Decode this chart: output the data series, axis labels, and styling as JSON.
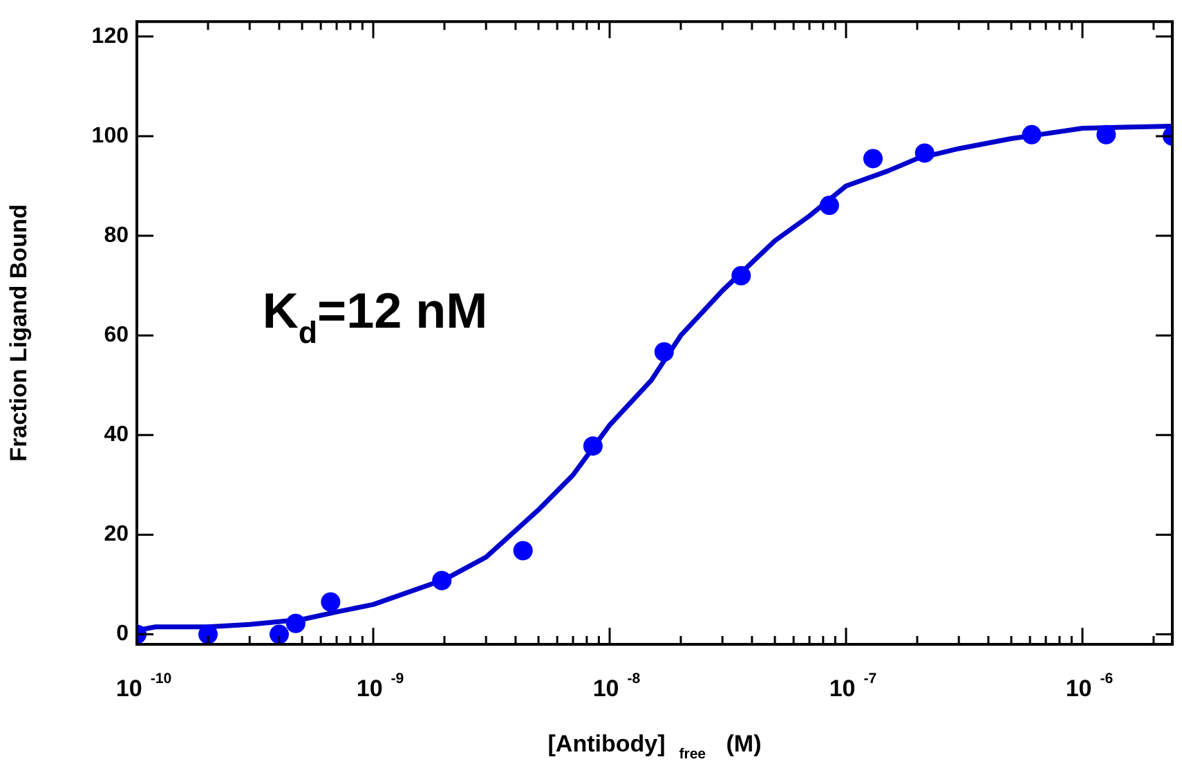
{
  "chart_data": {
    "type": "scatter",
    "xlabel": "[Antibody]$_{free}$ (M)",
    "ylabel": "Fraction Ligand Bound",
    "annotations": [
      "K$_{d}$=12 nM"
    ],
    "log": "x",
    "grid": false,
    "legend": false,
    "xlim": [
      1e-10,
      2.4e-06
    ],
    "ylim": [
      -2,
      123
    ],
    "xticks": [
      {
        "value": 1e-10,
        "label": "10$^{-10}$"
      },
      {
        "value": 2e-10,
        "label": null
      },
      {
        "value": 3e-10,
        "label": null
      },
      {
        "value": 4e-10,
        "label": null
      },
      {
        "value": 5e-10,
        "label": null
      },
      {
        "value": 6e-10,
        "label": null
      },
      {
        "value": 7e-10,
        "label": null
      },
      {
        "value": 8e-10,
        "label": null
      },
      {
        "value": 9e-10,
        "label": null
      },
      {
        "value": 1e-09,
        "label": "10$^{-9}$"
      },
      {
        "value": 2e-09,
        "label": null
      },
      {
        "value": 3e-09,
        "label": null
      },
      {
        "value": 4e-09,
        "label": null
      },
      {
        "value": 5e-09,
        "label": null
      },
      {
        "value": 6e-09,
        "label": null
      },
      {
        "value": 7e-09,
        "label": null
      },
      {
        "value": 8e-09,
        "label": null
      },
      {
        "value": 9e-09,
        "label": null
      },
      {
        "value": 1e-08,
        "label": "10$^{-8}$"
      },
      {
        "value": 2e-08,
        "label": null
      },
      {
        "value": 3e-08,
        "label": null
      },
      {
        "value": 4e-08,
        "label": null
      },
      {
        "value": 5e-08,
        "label": null
      },
      {
        "value": 6e-08,
        "label": null
      },
      {
        "value": 7e-08,
        "label": null
      },
      {
        "value": 8e-08,
        "label": null
      },
      {
        "value": 9e-08,
        "label": null
      },
      {
        "value": 1e-07,
        "label": "10$^{-7}$"
      },
      {
        "value": 2e-07,
        "label": null
      },
      {
        "value": 3e-07,
        "label": null
      },
      {
        "value": 4e-07,
        "label": null
      },
      {
        "value": 5e-07,
        "label": null
      },
      {
        "value": 6e-07,
        "label": null
      },
      {
        "value": 7e-07,
        "label": null
      },
      {
        "value": 8e-07,
        "label": null
      },
      {
        "value": 9e-07,
        "label": null
      },
      {
        "value": 1e-06,
        "label": "10$^{-6}$"
      },
      {
        "value": 2e-06,
        "label": null
      }
    ],
    "yticks": [
      0,
      20,
      40,
      60,
      80,
      100,
      120
    ],
    "series": [
      {
        "type": "scatter",
        "color": "#0000ff",
        "marker": "circle",
        "x": [
          1e-10,
          2e-10,
          4e-10,
          4.7e-10,
          6.6e-10,
          1.95e-09,
          4.3e-09,
          8.5e-09,
          1.7e-08,
          3.6e-08,
          8.5e-08,
          1.3e-07,
          2.15e-07,
          6.1e-07,
          1.26e-06,
          2.4e-06
        ],
        "values": [
          0,
          0,
          0,
          2.2,
          6.5,
          10.8,
          16.8,
          37.8,
          56.7,
          72,
          86.1,
          95.5,
          96.6,
          100.3,
          100.3,
          100
        ]
      },
      {
        "type": "line",
        "color": "#0000cc",
        "marker": "none",
        "line_style": "solid",
        "x": [
          1e-10,
          1.2e-10,
          2e-10,
          3e-10,
          5e-10,
          7e-10,
          1e-09,
          2e-09,
          3e-09,
          5e-09,
          7e-09,
          1e-08,
          1.5e-08,
          2e-08,
          3e-08,
          5e-08,
          7e-08,
          1e-07,
          1.5e-07,
          2e-07,
          3e-07,
          5e-07,
          7e-07,
          1e-06,
          1.5e-06,
          2.4e-06
        ],
        "values": [
          0.8,
          1.5,
          1.5,
          2,
          3,
          4.5,
          6,
          11,
          15.5,
          25,
          32,
          42,
          51,
          60,
          69,
          79,
          84,
          90,
          93,
          95.5,
          97.5,
          99.5,
          100.5,
          101.6,
          101.8,
          102
        ]
      }
    ]
  }
}
